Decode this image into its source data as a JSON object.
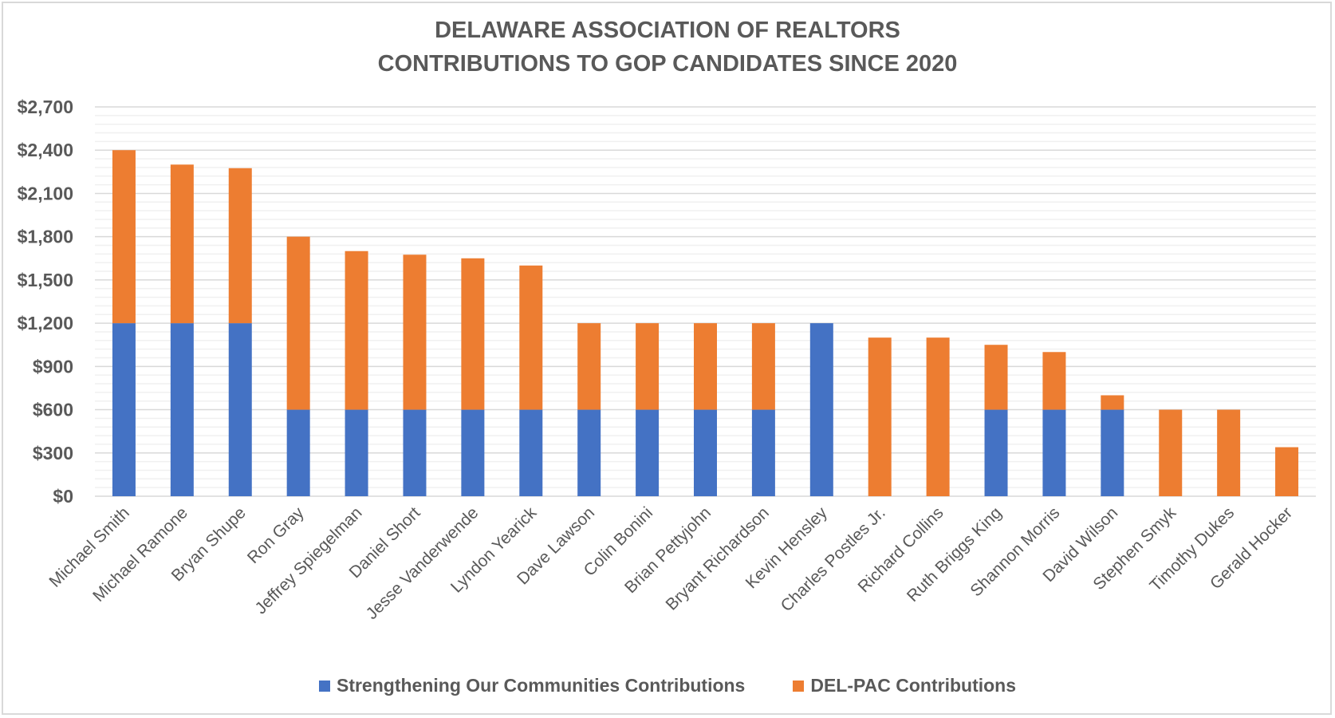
{
  "chart_data": {
    "type": "bar",
    "stacked": true,
    "title_lines": [
      "DELAWARE ASSOCIATION OF REALTORS",
      "CONTRIBUTIONS TO GOP CANDIDATES SINCE 2020"
    ],
    "xlabel": "",
    "ylabel": "",
    "ylim": [
      0,
      2700
    ],
    "y_ticks": [
      "$0",
      "$300",
      "$600",
      "$900",
      "$1,200",
      "$1,500",
      "$1,800",
      "$2,100",
      "$2,400",
      "$2,700"
    ],
    "y_tick_values": [
      0,
      300,
      600,
      900,
      1200,
      1500,
      1800,
      2100,
      2400,
      2700
    ],
    "grid": true,
    "legend_position": "bottom",
    "categories": [
      "Michael Smith",
      "Michael Ramone",
      "Bryan Shupe",
      "Ron Gray",
      "Jeffrey Spiegelman",
      "Daniel Short",
      "Jesse Vanderwende",
      "Lyndon Yearick",
      "Dave Lawson",
      "Colin Bonini",
      "Brian Pettyjohn",
      "Bryant Richardson",
      "Kevin Hensley",
      "Charles Postles Jr.",
      "Richard Collins",
      "Ruth Briggs King",
      "Shannon Morris",
      "David Wilson",
      "Stephen Smyk",
      "Timothy Dukes",
      "Gerald Hocker"
    ],
    "series": [
      {
        "name": "Strengthening Our Communities Contributions",
        "color": "#4472C4",
        "values": [
          1200,
          1200,
          1200,
          600,
          600,
          600,
          600,
          600,
          600,
          600,
          600,
          600,
          1200,
          0,
          0,
          600,
          600,
          600,
          0,
          0,
          0
        ]
      },
      {
        "name": "DEL-PAC Contributions",
        "color": "#ED7D31",
        "values": [
          1200,
          1100,
          1075,
          1200,
          1100,
          1075,
          1050,
          1000,
          600,
          600,
          600,
          600,
          0,
          1100,
          1100,
          450,
          400,
          100,
          600,
          600,
          340
        ]
      }
    ]
  }
}
